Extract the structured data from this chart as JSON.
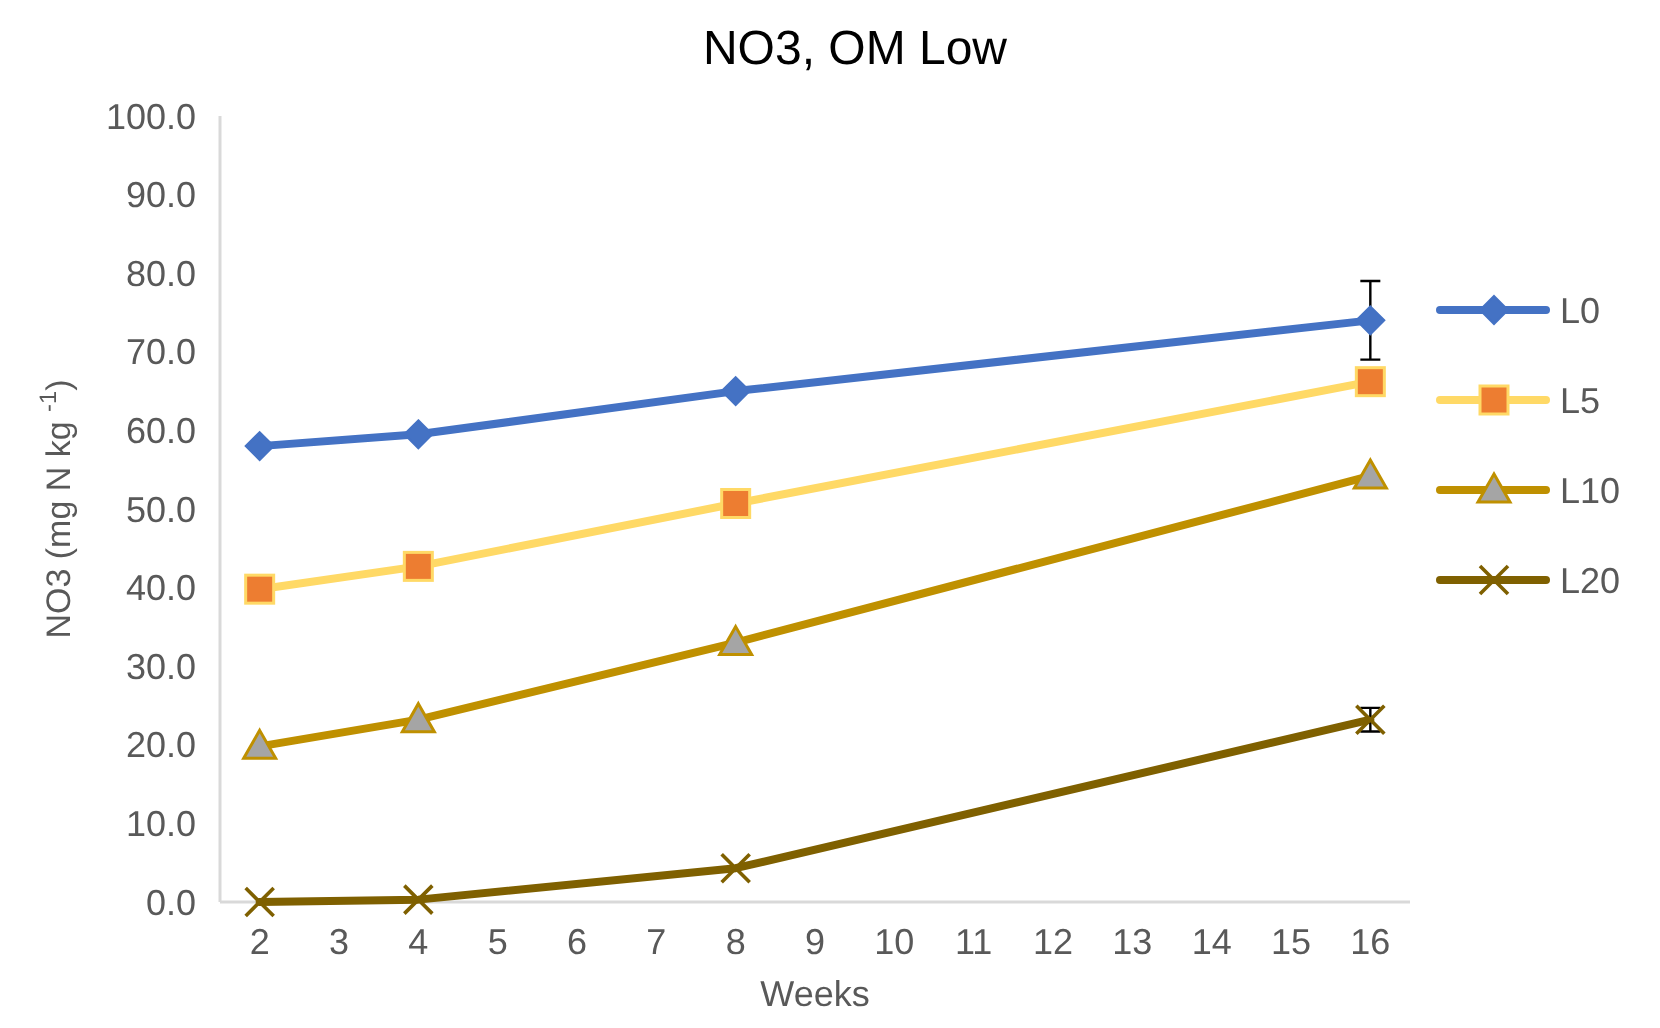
{
  "chart_data": {
    "type": "line",
    "title": "NO3, OM Low",
    "xlabel": "Weeks",
    "ylabel": "NO3 (mg N kg $^{-1}$)",
    "x": [
      2,
      4,
      8,
      16
    ],
    "xlim": [
      1.5,
      16.5
    ],
    "xticks": [
      2,
      3,
      4,
      5,
      6,
      7,
      8,
      9,
      10,
      11,
      12,
      13,
      14,
      15,
      16
    ],
    "ylim": [
      0,
      100
    ],
    "yticks": [
      {
        "value": 0,
        "label": "0.0"
      },
      {
        "value": 10,
        "label": "10.0"
      },
      {
        "value": 20,
        "label": "20.0"
      },
      {
        "value": 30,
        "label": "30.0"
      },
      {
        "value": 40,
        "label": "40.0"
      },
      {
        "value": 50,
        "label": "50.0"
      },
      {
        "value": 60,
        "label": "60.0"
      },
      {
        "value": 70,
        "label": "70.0"
      },
      {
        "value": 80,
        "label": "80.0"
      },
      {
        "value": 90,
        "label": "90.0"
      },
      {
        "value": 100,
        "label": "100.0"
      }
    ],
    "grid": false,
    "legend": "right",
    "line_style": "solid",
    "series": [
      {
        "name": "L0",
        "color": "#4472c4",
        "colors": [
          "#4472c4",
          "#4472c4",
          "#4472c4",
          "#4472c4"
        ],
        "marker": "diamond",
        "values": [
          58.0,
          59.5,
          65.0,
          74.0
        ],
        "errors": [
          null,
          null,
          null,
          5
        ]
      },
      {
        "name": "L5",
        "color": "#ffd966",
        "colors": [
          "#ed7d31",
          "#ed7d31",
          "#ed7d31",
          "#ed7d31"
        ],
        "marker": "square",
        "values": [
          39.8,
          42.7,
          50.7,
          66.2
        ]
      },
      {
        "name": "L10",
        "color": "#bf9000",
        "colors": [
          "#a5a5a5",
          "#a5a5a5",
          "#a5a5a5",
          "#a5a5a5"
        ],
        "marker": "triangle",
        "values": [
          19.8,
          23.2,
          33.0,
          54.2
        ]
      },
      {
        "name": "L20",
        "color": "#7f6000",
        "colors": [
          "#7f6000",
          "#7f6000",
          "#7f6000",
          "#7f6000"
        ],
        "marker": "cross",
        "values": [
          0,
          0.3,
          4.3,
          23.2
        ],
        "errors": [
          null,
          null,
          null,
          1.5
        ]
      }
    ]
  }
}
